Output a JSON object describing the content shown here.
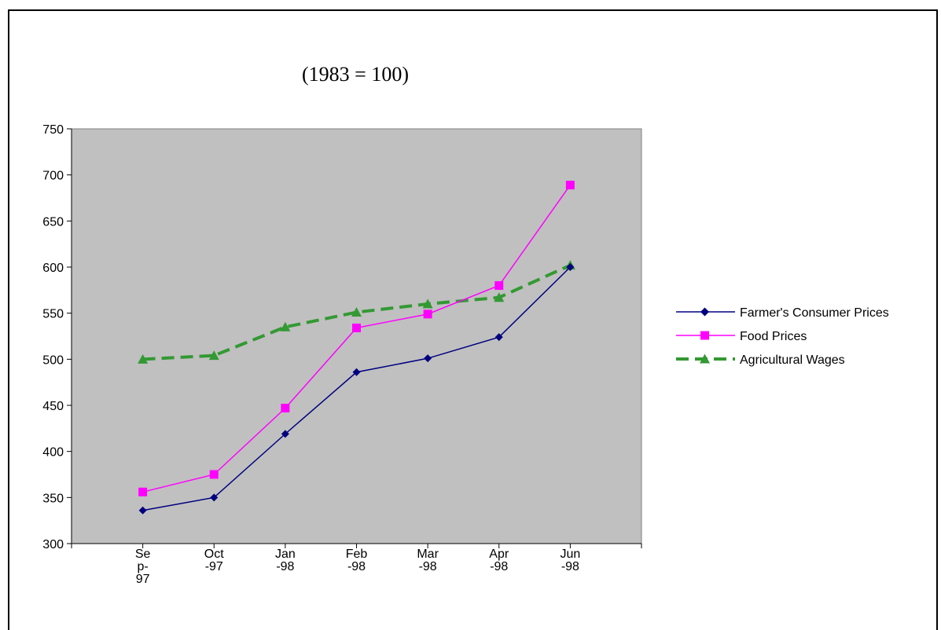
{
  "chart_data": {
    "type": "line",
    "subtitle": "(1983 = 100)",
    "categories": [
      "Sep-97",
      "Oct-97",
      "Jan-98",
      "Feb-98",
      "Mar-98",
      "Apr-98",
      "Jun-98"
    ],
    "category_label_lines": [
      [
        "Se",
        "p-",
        "97"
      ],
      [
        "Oct",
        "-97"
      ],
      [
        "Jan",
        "-98"
      ],
      [
        "Feb",
        "-98"
      ],
      [
        "Mar",
        "-98"
      ],
      [
        "Apr",
        "-98"
      ],
      [
        "Jun",
        "-98"
      ]
    ],
    "ylim": [
      300,
      750
    ],
    "yticks": [
      300,
      350,
      400,
      450,
      500,
      550,
      600,
      650,
      700,
      750
    ],
    "plot_background": "#c0c0c0",
    "grid": false,
    "legend_position": "right",
    "series": [
      {
        "name": "Farmer's Consumer Prices",
        "values": [
          336,
          350,
          419,
          486,
          501,
          524,
          600
        ],
        "color": "#000080",
        "marker": "diamond",
        "line": "solid"
      },
      {
        "name": "Food Prices",
        "values": [
          356,
          375,
          447,
          534,
          549,
          580,
          689
        ],
        "color": "#ff00ff",
        "marker": "square",
        "line": "solid"
      },
      {
        "name": "Agricultural Wages",
        "values": [
          500,
          504,
          535,
          551,
          560,
          567,
          602
        ],
        "color": "#339933",
        "marker": "triangle",
        "line": "dashed"
      }
    ]
  }
}
